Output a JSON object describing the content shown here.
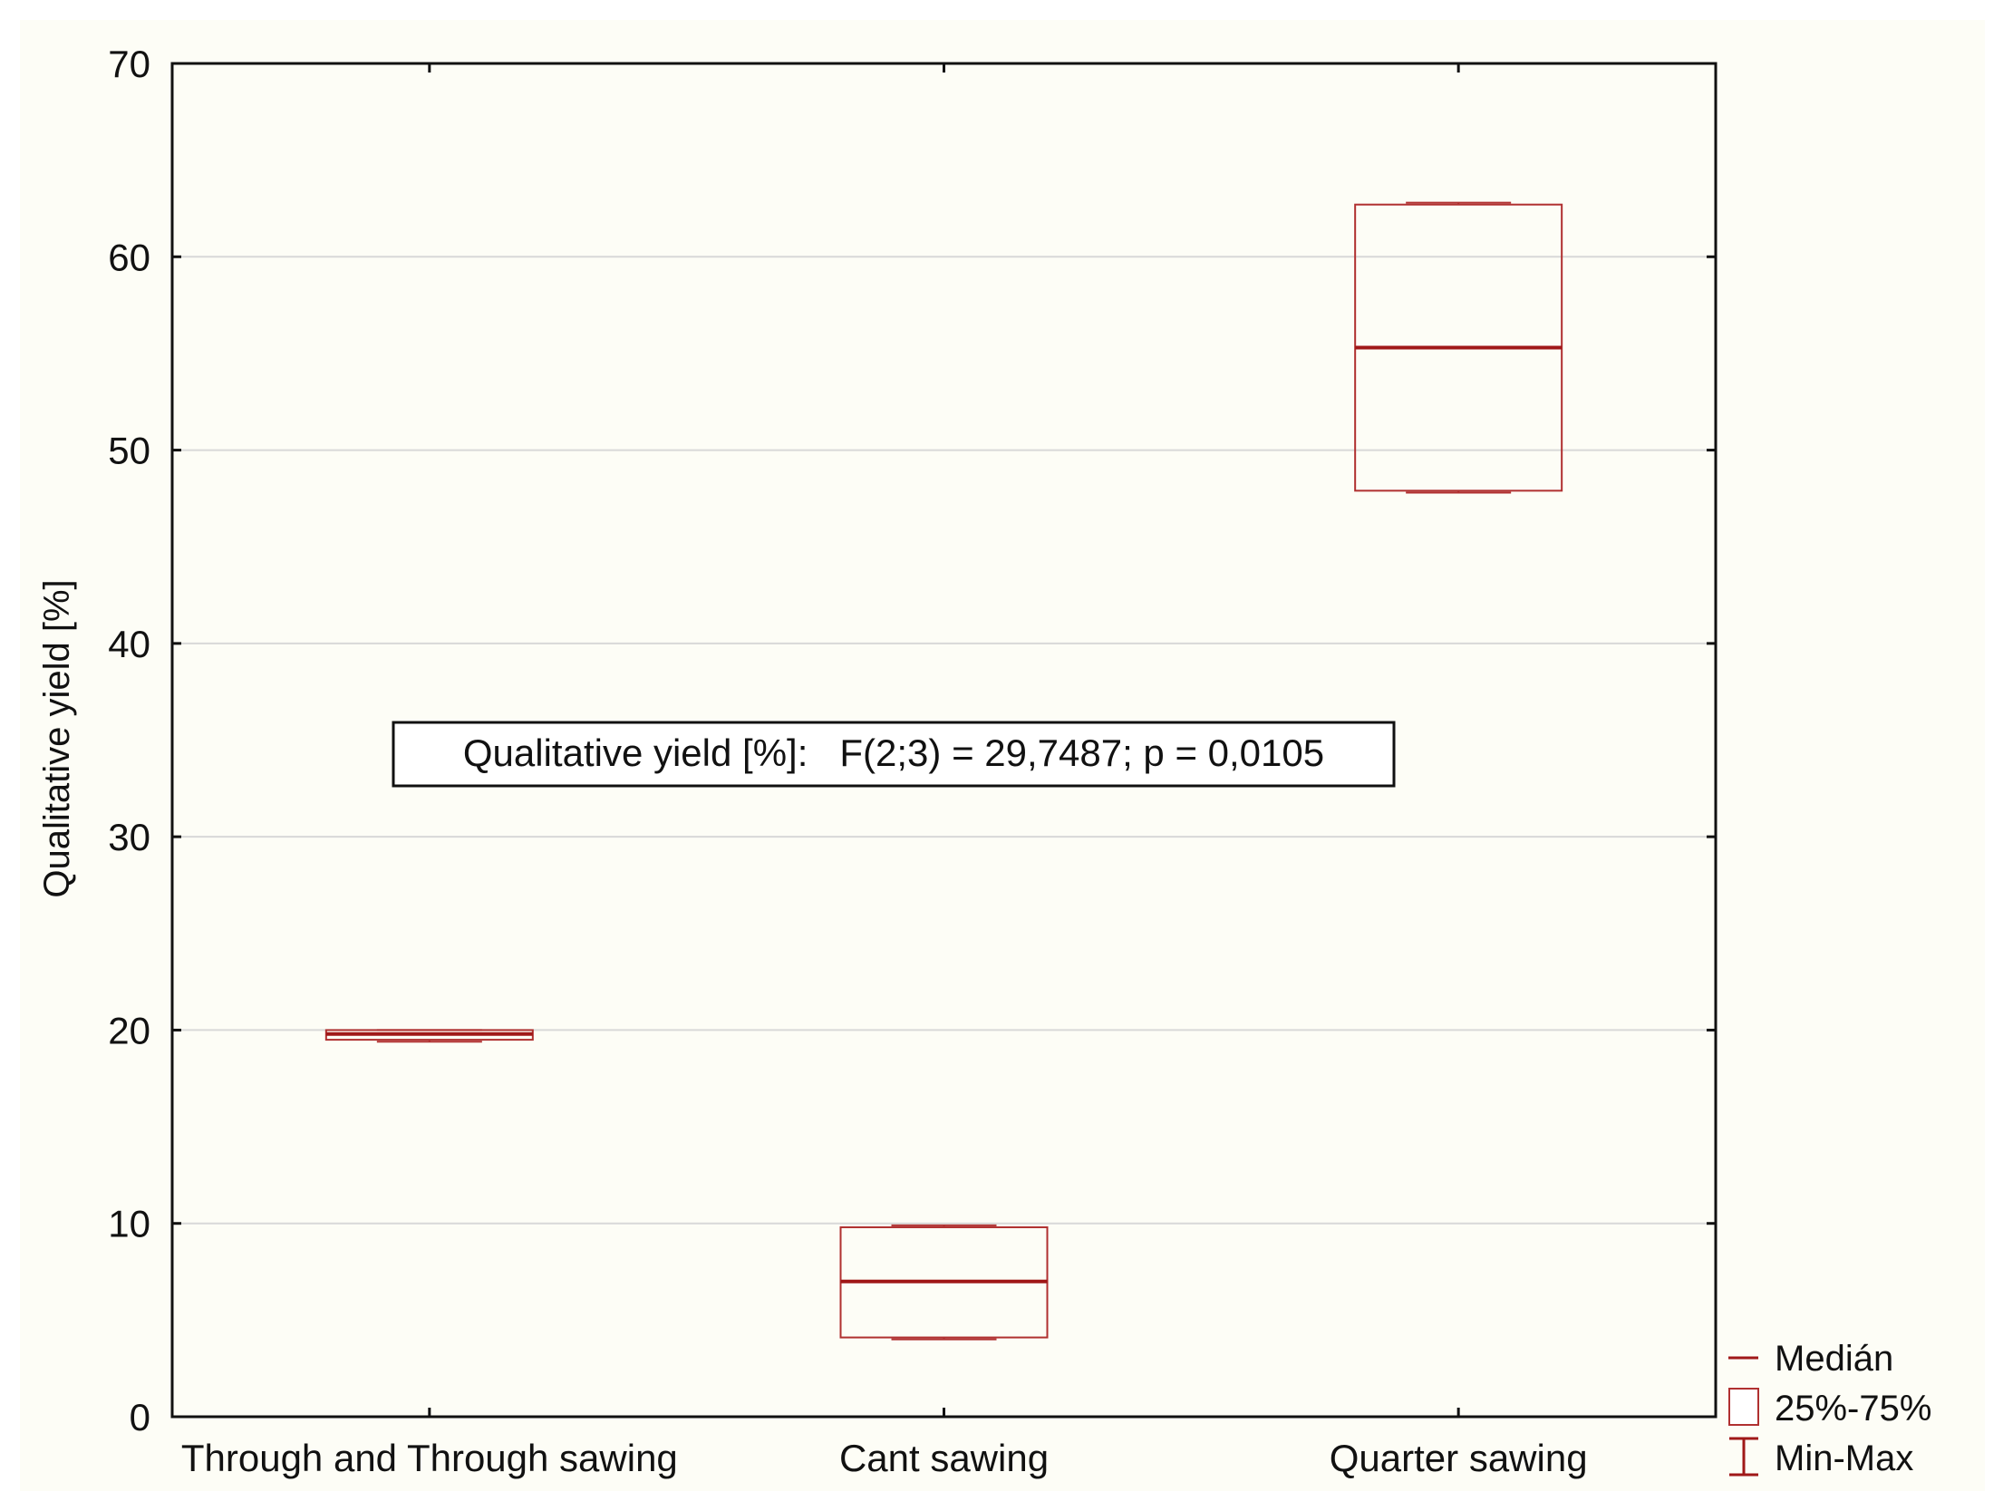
{
  "chart_data": {
    "type": "box",
    "categories": [
      "Through and Through sawing",
      "Cant sawing",
      "Quarter sawing"
    ],
    "series": [
      {
        "stats": [
          {
            "min": 19.4,
            "q1": 19.5,
            "median": 19.8,
            "q3": 20.0,
            "max": 20.0
          },
          {
            "min": 4.0,
            "q1": 4.1,
            "median": 7.0,
            "q3": 9.8,
            "max": 9.9
          },
          {
            "min": 47.8,
            "q1": 47.9,
            "median": 55.3,
            "q3": 62.7,
            "max": 62.8
          }
        ]
      }
    ],
    "ylabel": "Qualitative yield [%]",
    "xlabel": "",
    "ylim": [
      0,
      70
    ],
    "yticks": [
      "0",
      "10",
      "20",
      "30",
      "40",
      "50",
      "60",
      "70"
    ],
    "grid": "horizontal",
    "annotation": "Qualitative yield [%]:   F(2;3) = 29,7487; p = 0,0105",
    "legend": {
      "position": "bottom-right",
      "entries": [
        "Medián",
        "25%-75%",
        "Min-Max"
      ]
    },
    "colors": {
      "box": "#b03030",
      "median": "#a01818",
      "grid": "#d8d8d8",
      "axis": "#111111",
      "background": "#fdfdf6"
    }
  }
}
